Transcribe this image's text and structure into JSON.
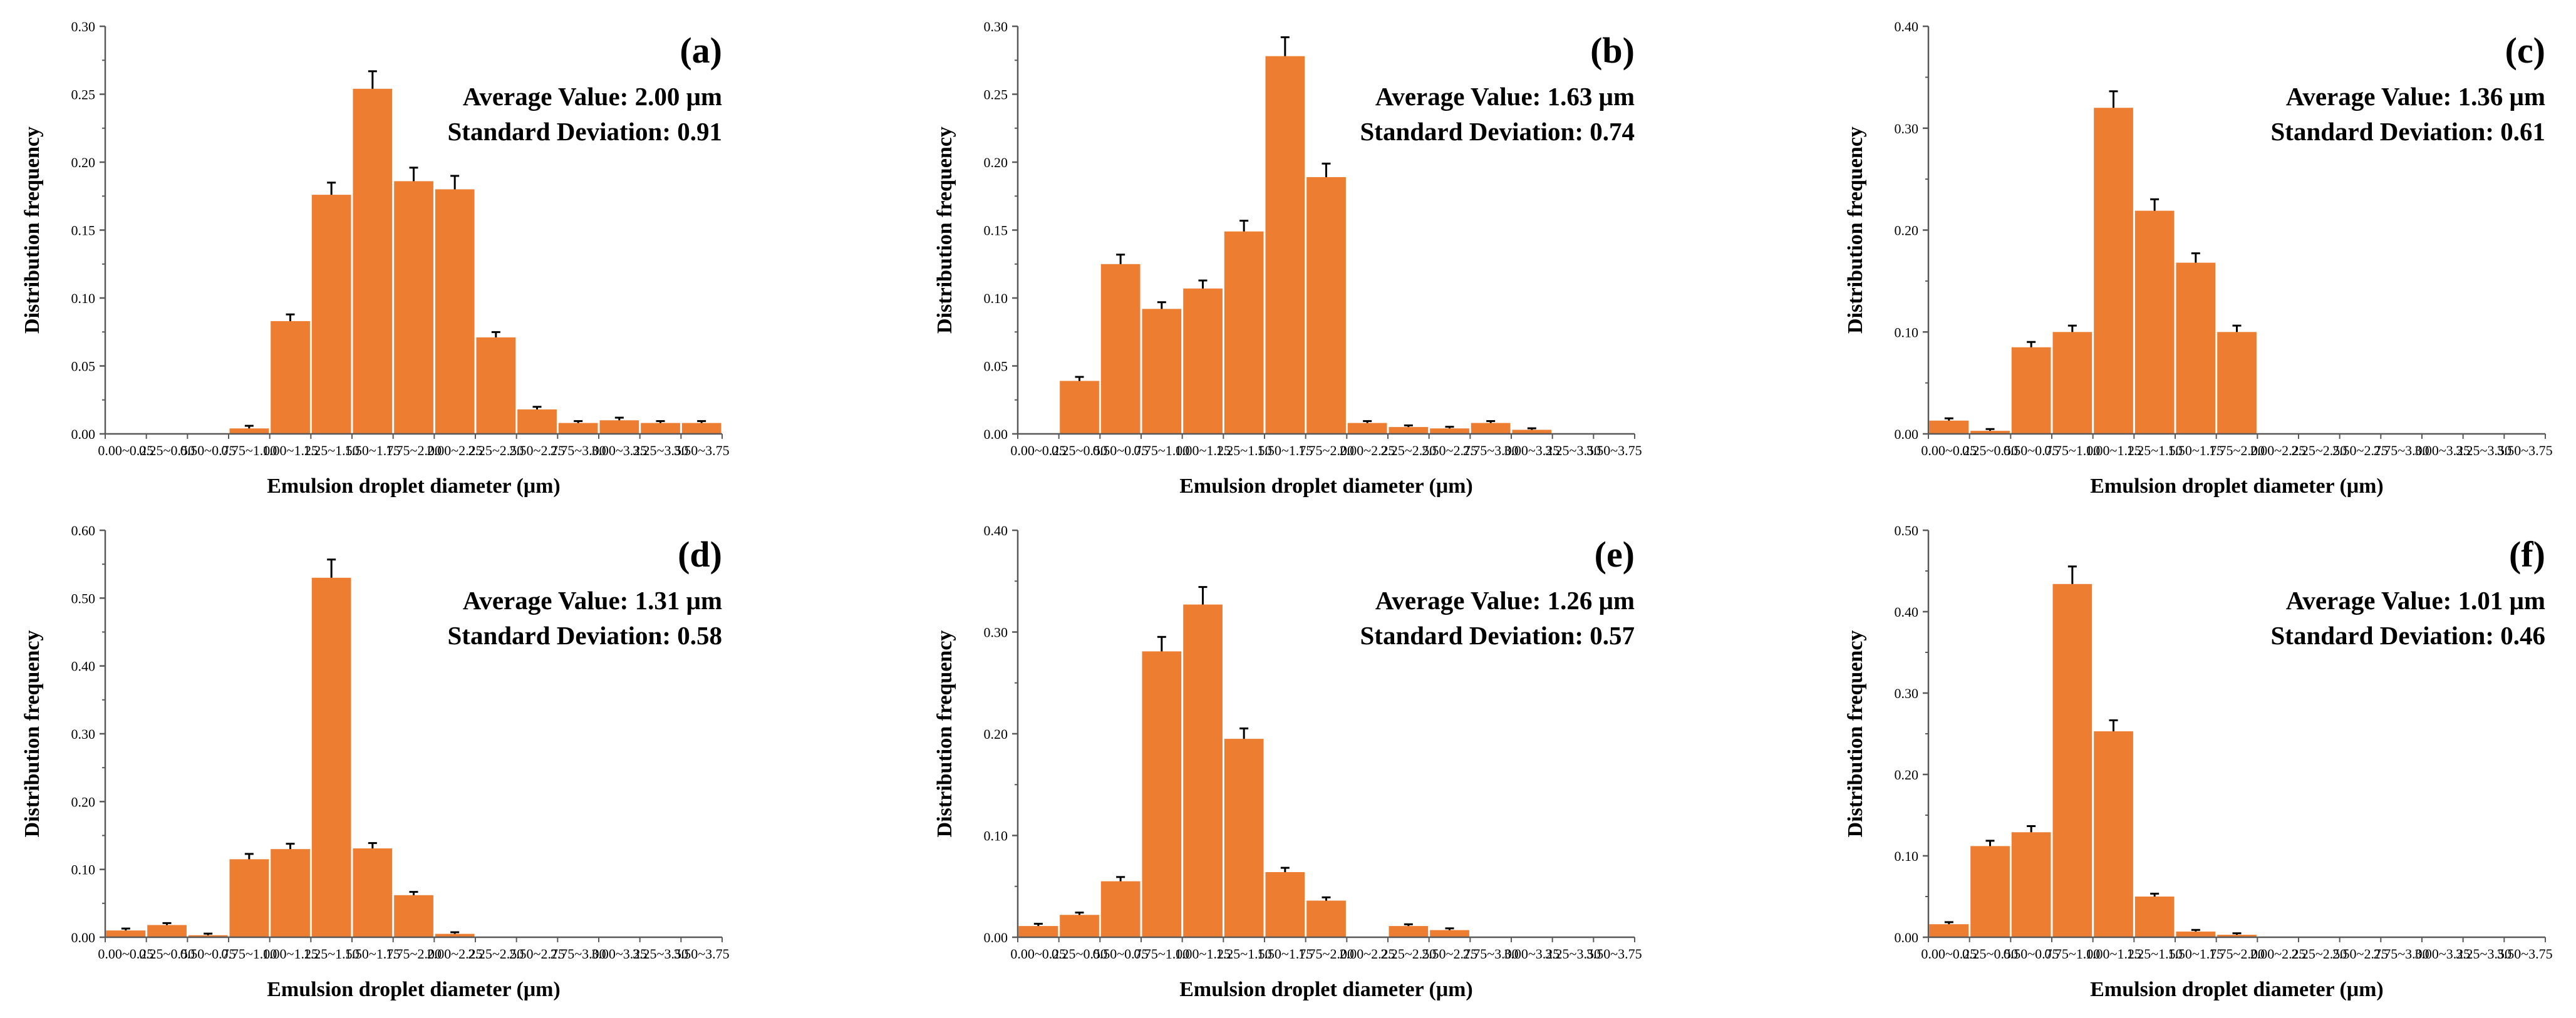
{
  "figure": {
    "bar_color": "#ED7D31",
    "categories": [
      "0.00~0.25",
      "0.25~0.50",
      "0.50~0.75",
      "0.75~1.00",
      "1.00~1.25",
      "1.25~1.50",
      "1.50~1.75",
      "1.75~2.00",
      "2.00~2.25",
      "2.25~2.50",
      "2.50~2.75",
      "2.75~3.00",
      "3.00~3.25",
      "3.25~3.50",
      "3.50~3.75"
    ]
  },
  "chart_data": [
    {
      "type": "bar",
      "panel_label": "(a)",
      "title": "",
      "xlabel": "Emulsion droplet diameter (μm)",
      "ylabel": "Distribution frequency",
      "ylim": [
        0,
        0.3
      ],
      "yticks": [
        "0.00",
        "0.05",
        "0.10",
        "0.15",
        "0.20",
        "0.25",
        "0.30"
      ],
      "annotation_avg": "Average Value: 2.00 μm",
      "annotation_sd": "Standard Deviation: 0.91",
      "values": [
        0,
        0,
        0,
        0.004,
        0.083,
        0.176,
        0.254,
        0.186,
        0.18,
        0.071,
        0.018,
        0.008,
        0.01,
        0.008,
        0.008
      ],
      "errors": [
        0,
        0,
        0,
        0.001,
        0.004,
        0.008,
        0.012,
        0.009,
        0.009,
        0.003,
        0.001,
        0.0005,
        0.001,
        0.0005,
        0.0005
      ]
    },
    {
      "type": "bar",
      "panel_label": "(b)",
      "title": "",
      "xlabel": "Emulsion droplet diameter (μm)",
      "ylabel": "Distribution frequency",
      "ylim": [
        0,
        0.3
      ],
      "yticks": [
        "0.00",
        "0.05",
        "0.10",
        "0.15",
        "0.20",
        "0.25",
        "0.30"
      ],
      "annotation_avg": "Average Value: 1.63 μm",
      "annotation_sd": "Standard Deviation: 0.74",
      "values": [
        0,
        0.039,
        0.125,
        0.092,
        0.107,
        0.149,
        0.278,
        0.189,
        0.008,
        0.005,
        0.004,
        0.008,
        0.003,
        0,
        0
      ],
      "errors": [
        0,
        0.002,
        0.006,
        0.004,
        0.005,
        0.007,
        0.013,
        0.009,
        0.0005,
        0.0003,
        0.0003,
        0.0005,
        0.0002,
        0,
        0
      ]
    },
    {
      "type": "bar",
      "panel_label": "(c)",
      "title": "",
      "xlabel": "Emulsion droplet diameter (μm)",
      "ylabel": "Distribution frequency",
      "ylim": [
        0,
        0.4
      ],
      "yticks": [
        "0.00",
        "0.10",
        "0.20",
        "0.30",
        "0.40"
      ],
      "annotation_avg": "Average Value: 1.36 μm",
      "annotation_sd": "Standard Deviation: 0.61",
      "values": [
        0.013,
        0.003,
        0.085,
        0.1,
        0.32,
        0.219,
        0.168,
        0.1,
        0,
        0,
        0,
        0,
        0,
        0,
        0
      ],
      "errors": [
        0.001,
        0.0005,
        0.004,
        0.005,
        0.015,
        0.01,
        0.008,
        0.005,
        0,
        0,
        0,
        0,
        0,
        0,
        0
      ]
    },
    {
      "type": "bar",
      "panel_label": "(d)",
      "title": "",
      "xlabel": "Emulsion droplet diameter (μm)",
      "ylabel": "Distribution frequency",
      "ylim": [
        0,
        0.6
      ],
      "yticks": [
        "0.00",
        "0.10",
        "0.20",
        "0.30",
        "0.40",
        "0.50",
        "0.60"
      ],
      "annotation_avg": "Average Value: 1.31 μm",
      "annotation_sd": "Standard Deviation: 0.58",
      "values": [
        0.01,
        0.018,
        0.003,
        0.115,
        0.13,
        0.53,
        0.131,
        0.062,
        0.005,
        0,
        0,
        0,
        0,
        0,
        0
      ],
      "errors": [
        0.001,
        0.001,
        0.0005,
        0.006,
        0.006,
        0.025,
        0.006,
        0.003,
        0.0005,
        0,
        0,
        0,
        0,
        0,
        0
      ]
    },
    {
      "type": "bar",
      "panel_label": "(e)",
      "title": "",
      "xlabel": "Emulsion droplet diameter (μm)",
      "ylabel": "Distribution frequency",
      "ylim": [
        0,
        0.4
      ],
      "yticks": [
        "0.00",
        "0.10",
        "0.20",
        "0.30",
        "0.40"
      ],
      "annotation_avg": "Average Value: 1.26 μm",
      "annotation_sd": "Standard Deviation: 0.57",
      "values": [
        0.011,
        0.022,
        0.055,
        0.281,
        0.327,
        0.195,
        0.064,
        0.036,
        0,
        0.011,
        0.007,
        0,
        0,
        0,
        0
      ],
      "errors": [
        0.001,
        0.001,
        0.003,
        0.013,
        0.016,
        0.009,
        0.003,
        0.002,
        0,
        0.0005,
        0.0005,
        0,
        0,
        0,
        0
      ]
    },
    {
      "type": "bar",
      "panel_label": "(f)",
      "title": "",
      "xlabel": "Emulsion droplet diameter (μm)",
      "ylabel": "Distribution frequency",
      "ylim": [
        0,
        0.5
      ],
      "yticks": [
        "0.00",
        "0.10",
        "0.20",
        "0.30",
        "0.40",
        "0.50"
      ],
      "annotation_avg": "Average Value: 1.01 μm",
      "annotation_sd": "Standard Deviation: 0.46",
      "values": [
        0.016,
        0.112,
        0.129,
        0.434,
        0.253,
        0.05,
        0.007,
        0.003,
        0,
        0,
        0,
        0,
        0,
        0,
        0
      ],
      "errors": [
        0.001,
        0.005,
        0.006,
        0.02,
        0.012,
        0.002,
        0.0005,
        0.0003,
        0,
        0,
        0,
        0,
        0,
        0,
        0
      ]
    }
  ]
}
